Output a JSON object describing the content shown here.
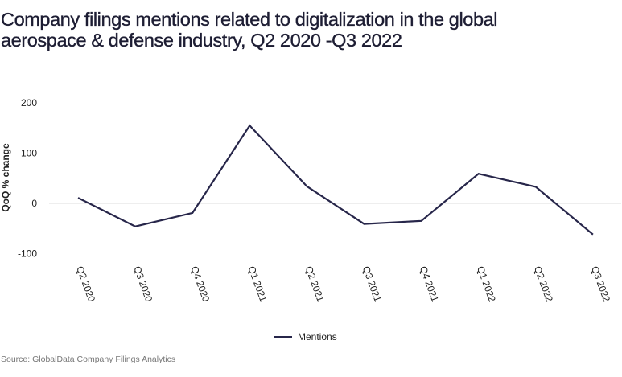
{
  "chart_data": {
    "type": "line",
    "title": "Company filings mentions related to digitalization in the global aerospace & defense industry, Q2 2020 -Q3 2022",
    "xlabel": "",
    "ylabel": "QoQ % change",
    "categories": [
      "Q2 2020",
      "Q3 2020",
      "Q4 2020",
      "Q1 2021",
      "Q2 2021",
      "Q3 2021",
      "Q4 2021",
      "Q1 2022",
      "Q2 2022",
      "Q3 2022"
    ],
    "series": [
      {
        "name": "Mentions",
        "color": "#27264a",
        "values": [
          11,
          -46,
          -19,
          155,
          34,
          -41,
          -35,
          59,
          33,
          -62
        ]
      }
    ],
    "ylim": [
      -100,
      200
    ],
    "yticks": [
      200,
      100,
      0,
      -100
    ],
    "grid": "zero-line only",
    "legend": "bottom-center"
  },
  "source": "Source: GlobalData Company Filings Analytics"
}
